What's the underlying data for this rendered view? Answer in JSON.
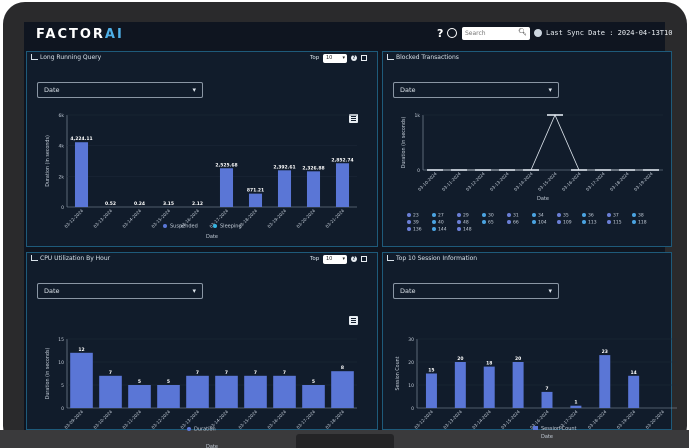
{
  "header": {
    "logo_main": "FACTOR",
    "logo_accent": "AI",
    "search_placeholder": "Search",
    "sync_label": "Last Sync Date : 2024-04-13T10"
  },
  "panels": {
    "long_running": {
      "title": "Long Running Query",
      "top_label": "Top",
      "top_value": "10",
      "date_select": "Date"
    },
    "blocked": {
      "title": "Blocked Transactions",
      "date_select": "Date"
    },
    "cpu": {
      "title": "CPU Utilization By Hour",
      "top_label": "Top",
      "top_value": "10",
      "date_select": "Date"
    },
    "sessions": {
      "title": "Top 10 Session Information",
      "date_select": "Date"
    }
  },
  "colors": {
    "accent": "#4fb0e8",
    "bar": "#5a76d6",
    "sleeping": "#34b6e4",
    "panel_border": "#1e5a7a"
  },
  "chart_data": [
    {
      "id": "long_running",
      "type": "bar",
      "categories": [
        "03-12-2024",
        "03-13-2024",
        "03-14-2024",
        "03-15-2024",
        "03-16-2024",
        "03-17-2024",
        "03-18-2024",
        "03-19-2024",
        "03-20-2024",
        "03-21-2024"
      ],
      "series": [
        {
          "name": "Suspended",
          "values": [
            4224.11,
            0.52,
            0.24,
            3.15,
            2.12,
            2525.68,
            871.21,
            2392.61,
            2326.88,
            2852.74
          ]
        },
        {
          "name": "Sleeping",
          "values": [
            0,
            0,
            0,
            0,
            0,
            0,
            0,
            0,
            0,
            0
          ]
        }
      ],
      "data_labels": [
        "4,224.11",
        "0.52",
        "0.24",
        "3.15",
        "2.12",
        "2,525.68",
        "871.21",
        "2,392.61",
        "2,326.88",
        "2,852.74"
      ],
      "yticks": [
        "0",
        "2k",
        "4k",
        "6k"
      ],
      "ylim": [
        0,
        6000
      ],
      "xlabel": "Date",
      "ylabel": "Duration (in seconds)",
      "legend": "bottom"
    },
    {
      "id": "blocked",
      "type": "line",
      "categories": [
        "03-10-2024",
        "03-11-2024",
        "03-12-2024",
        "03-13-2024",
        "03-14-2024",
        "03-15-2024",
        "03-16-2024",
        "03-17-2024",
        "03-18-2024",
        "03-19-2024"
      ],
      "values": [
        0,
        0,
        0,
        0,
        0,
        1000,
        0,
        0,
        0,
        0
      ],
      "yticks": [
        "0",
        "1k"
      ],
      "ylim": [
        0,
        1000
      ],
      "xlabel": "Date",
      "ylabel": "Duration (in seconds)",
      "legend_items": [
        "23",
        "27",
        "29",
        "30",
        "31",
        "34",
        "35",
        "36",
        "37",
        "38",
        "39",
        "40",
        "48",
        "65",
        "66",
        "104",
        "109",
        "113",
        "115",
        "118",
        "136",
        "144",
        "148"
      ],
      "legend_colors": [
        "#6b7fd6",
        "#4aa3e0",
        "#6b7fd6",
        "#4aa3e0",
        "#6b7fd6",
        "#4aa3e0",
        "#6b7fd6",
        "#4aa3e0",
        "#6b7fd6",
        "#4aa3e0",
        "#6b7fd6",
        "#4aa3e0",
        "#6b7fd6",
        "#4aa3e0",
        "#6b7fd6",
        "#4aa3e0",
        "#6b7fd6",
        "#4aa3e0",
        "#6b7fd6",
        "#4aa3e0",
        "#6b7fd6",
        "#4aa3e0",
        "#6b7fd6"
      ],
      "legend": "bottom"
    },
    {
      "id": "cpu",
      "type": "bar",
      "categories": [
        "03-09-2024",
        "03-10-2024",
        "03-11-2024",
        "03-12-2024",
        "03-13-2024",
        "03-14-2024",
        "03-15-2024",
        "03-16-2024",
        "03-17-2024",
        "03-18-2024"
      ],
      "values": [
        12,
        7,
        5,
        5,
        7,
        7,
        7,
        7,
        5,
        8
      ],
      "yticks": [
        "0",
        "5",
        "10",
        "15"
      ],
      "ylim": [
        0,
        15
      ],
      "xlabel": "Date",
      "ylabel": "Duration (in seconds)",
      "series_name": "Duration",
      "legend": "bottom"
    },
    {
      "id": "sessions",
      "type": "bar",
      "categories": [
        "03-12-2024",
        "03-13-2024",
        "03-14-2024",
        "03-15-2024",
        "03-16-2024",
        "03-17-2024",
        "03-18-2024",
        "03-19-2024",
        "03-20-2024"
      ],
      "values": [
        15,
        20,
        18,
        20,
        7,
        1,
        23,
        14,
        0
      ],
      "data_labels": [
        "15",
        "20",
        "18",
        "20",
        "7",
        "1",
        "23",
        "14",
        ""
      ],
      "yticks": [
        "0",
        "10",
        "20",
        "30"
      ],
      "ylim": [
        0,
        30
      ],
      "xlabel": "Date",
      "ylabel": "Session Count",
      "series_name": "Session Count",
      "legend": "bottom"
    }
  ]
}
